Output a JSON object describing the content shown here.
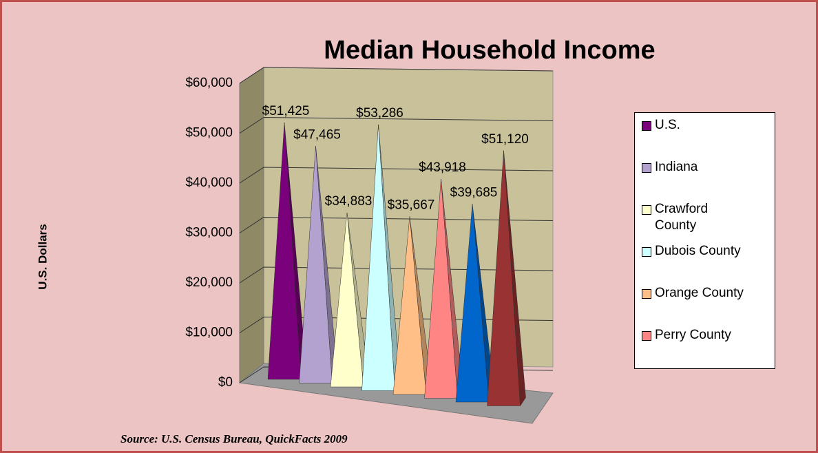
{
  "chart_data": {
    "type": "bar",
    "title": "Median Household Income",
    "y_label": "U.S. Dollars",
    "source": "Source:  U.S. Census Bureau, QuickFacts  2009",
    "categories": [
      "U.S.",
      "Indiana",
      "Crawford County",
      "Dubois County",
      "Orange County",
      "Perry County",
      null,
      null
    ],
    "values": [
      51425,
      47465,
      34883,
      53286,
      35667,
      43918,
      39685,
      51120
    ],
    "value_labels": [
      "$51,425",
      "$47,465",
      "$34,883",
      "$53,286",
      "$35,667",
      "$43,918",
      "$39,685",
      "$51,120"
    ],
    "colors": [
      "#7b007b",
      "#b3a2cf",
      "#ffffcc",
      "#ccffff",
      "#ffbf86",
      "#ff8585",
      "#0066cc",
      "#993333"
    ],
    "ylim": [
      0,
      60000
    ],
    "yticks": [
      {
        "value": 0,
        "label": "$0"
      },
      {
        "value": 10000,
        "label": "$10,000"
      },
      {
        "value": 20000,
        "label": "$20,000"
      },
      {
        "value": 30000,
        "label": "$30,000"
      },
      {
        "value": 40000,
        "label": "$40,000"
      },
      {
        "value": 50000,
        "label": "$50,000"
      },
      {
        "value": 60000,
        "label": "$60,000"
      }
    ],
    "grid": true,
    "legend": "right"
  }
}
